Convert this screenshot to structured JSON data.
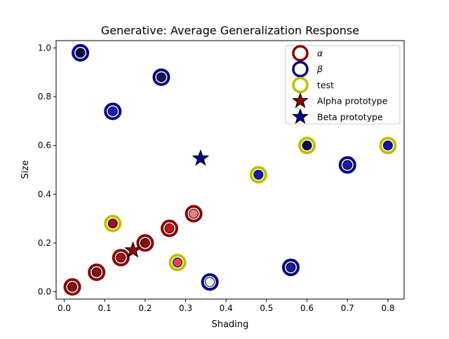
{
  "chart_data": {
    "type": "scatter",
    "title": "Generative: Average Generalization Response",
    "xlabel": "Shading",
    "ylabel": "Size",
    "xlim": [
      -0.02,
      0.84
    ],
    "ylim": [
      -0.03,
      1.03
    ],
    "xticks": [
      0.0,
      0.1,
      0.2,
      0.3,
      0.4,
      0.5,
      0.6,
      0.7,
      0.8
    ],
    "xtick_labels": [
      "0.0",
      "0.1",
      "0.2",
      "0.3",
      "0.4",
      "0.5",
      "0.6",
      "0.7",
      "0.8"
    ],
    "yticks": [
      0.0,
      0.2,
      0.4,
      0.6,
      0.8,
      1.0
    ],
    "ytick_labels": [
      "0.0",
      "0.2",
      "0.4",
      "0.6",
      "0.8",
      "1.0"
    ],
    "grid": false,
    "legend_position": "top-right",
    "colors": {
      "alpha_ring": "#8b0000",
      "beta_ring": "#00008b",
      "test_ring": "#bfbf00"
    },
    "series": [
      {
        "name": "α",
        "marker": "ring",
        "ring_color": "#8b0000",
        "points": [
          {
            "x": 0.02,
            "y": 0.02,
            "fill": "#8b0d0d"
          },
          {
            "x": 0.08,
            "y": 0.08,
            "fill": "#8b0d0d"
          },
          {
            "x": 0.14,
            "y": 0.14,
            "fill": "#a51010"
          },
          {
            "x": 0.2,
            "y": 0.2,
            "fill": "#8b0d0d"
          },
          {
            "x": 0.26,
            "y": 0.26,
            "fill": "#c91414"
          },
          {
            "x": 0.32,
            "y": 0.32,
            "fill": "#f08080"
          }
        ]
      },
      {
        "name": "β",
        "marker": "ring",
        "ring_color": "#00008b",
        "points": [
          {
            "x": 0.04,
            "y": 0.98,
            "fill": "#0a0a40"
          },
          {
            "x": 0.12,
            "y": 0.74,
            "fill": "#1c1cb0"
          },
          {
            "x": 0.24,
            "y": 0.88,
            "fill": "#10105c"
          },
          {
            "x": 0.36,
            "y": 0.04,
            "fill": "#ffffff"
          },
          {
            "x": 0.56,
            "y": 0.1,
            "fill": "#1a1aa5"
          },
          {
            "x": 0.7,
            "y": 0.52,
            "fill": "#1a1aa5"
          }
        ]
      },
      {
        "name": "test",
        "marker": "ring",
        "ring_color": "#bfbf00",
        "points": [
          {
            "x": 0.12,
            "y": 0.28,
            "fill": "#a51010"
          },
          {
            "x": 0.28,
            "y": 0.12,
            "fill": "#e04848"
          },
          {
            "x": 0.48,
            "y": 0.48,
            "fill": "#1a1ab8"
          },
          {
            "x": 0.6,
            "y": 0.6,
            "fill": "#0a0a50"
          },
          {
            "x": 0.8,
            "y": 0.6,
            "fill": "#1010b4"
          }
        ]
      },
      {
        "name": "Alpha prototype",
        "marker": "star",
        "fill": "#8b0000",
        "points": [
          {
            "x": 0.17,
            "y": 0.17
          }
        ]
      },
      {
        "name": "Beta prototype",
        "marker": "star",
        "fill": "#00008b",
        "points": [
          {
            "x": 0.337,
            "y": 0.547
          }
        ]
      }
    ],
    "legend": [
      {
        "label": "α",
        "marker": "ring",
        "color": "#8b0000",
        "italic": true
      },
      {
        "label": "β",
        "marker": "ring",
        "color": "#00008b",
        "italic": true
      },
      {
        "label": "test",
        "marker": "ring",
        "color": "#bfbf00",
        "italic": false
      },
      {
        "label": "Alpha prototype",
        "marker": "star",
        "color": "#8b0000",
        "italic": false
      },
      {
        "label": "Beta prototype",
        "marker": "star",
        "color": "#00008b",
        "italic": false
      }
    ]
  }
}
